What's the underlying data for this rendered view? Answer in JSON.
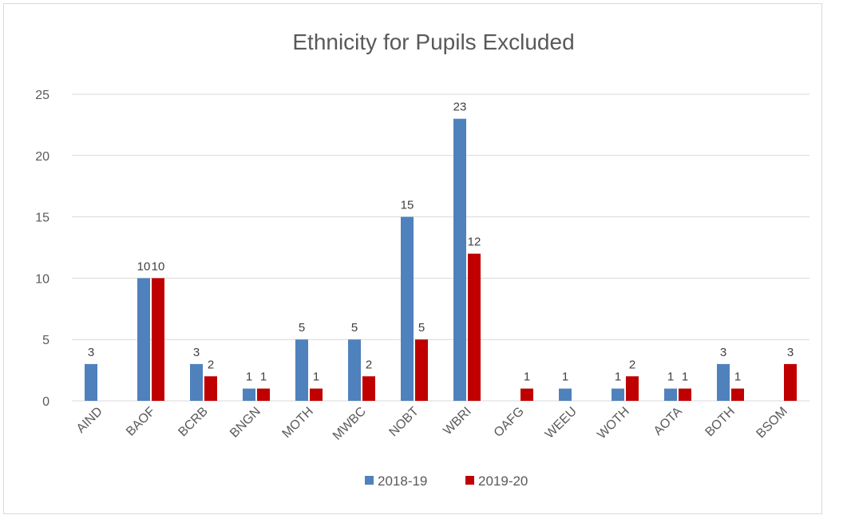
{
  "chart_data": {
    "type": "bar",
    "title": "Ethnicity for Pupils Excluded",
    "xlabel": "",
    "ylabel": "",
    "ylim": [
      0,
      25
    ],
    "yticks": [
      "0",
      "5",
      "10",
      "15",
      "20",
      "25"
    ],
    "grid": true,
    "legend": "bottom",
    "categories": [
      "AIND",
      "BAOF",
      "BCRB",
      "BNGN",
      "MOTH",
      "MWBC",
      "NOBT",
      "WBRI",
      "OAFG",
      "WEEU",
      "WOTH",
      "AOTA",
      "BOTH",
      "BSOM"
    ],
    "series": [
      {
        "name": "2018-19",
        "color": "#4f81bd",
        "values": [
          3,
          10,
          3,
          1,
          5,
          5,
          15,
          23,
          null,
          1,
          1,
          1,
          3,
          null
        ]
      },
      {
        "name": "2019-20",
        "color": "#c00000",
        "values": [
          null,
          10,
          2,
          1,
          1,
          2,
          5,
          12,
          1,
          null,
          2,
          1,
          1,
          3
        ]
      }
    ]
  }
}
